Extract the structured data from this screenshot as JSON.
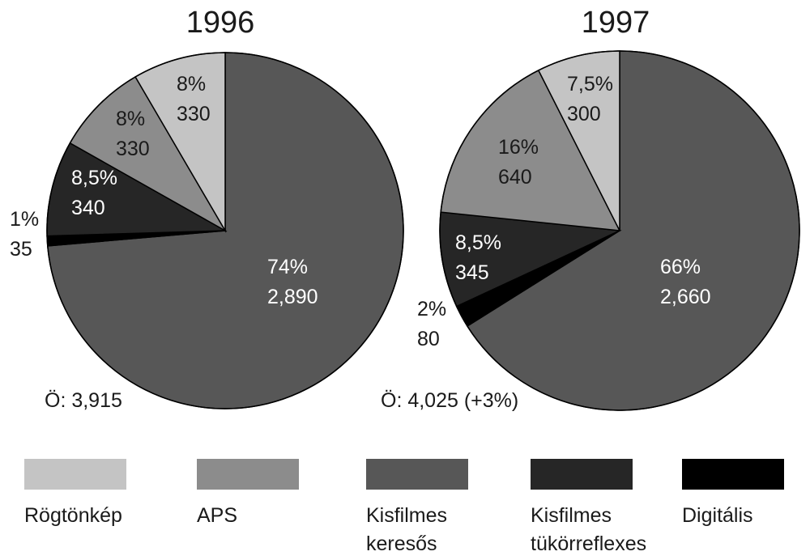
{
  "chart_data": [
    {
      "type": "pie",
      "title": "1996",
      "total_label": "Ö: 3,915",
      "slices": [
        {
          "category": "Kisfilmes keresős",
          "percent_label": "74%",
          "value_label": "2,890",
          "value": 2890
        },
        {
          "category": "Digitális",
          "percent_label": "1%",
          "value_label": "35",
          "value": 35
        },
        {
          "category": "Kisfilmes tükörreflexes",
          "percent_label": "8,5%",
          "value_label": "340",
          "value": 340
        },
        {
          "category": "APS",
          "percent_label": "8%",
          "value_label": "330",
          "value": 330
        },
        {
          "category": "Rögtönkép",
          "percent_label": "8%",
          "value_label": "330",
          "value": 330
        }
      ]
    },
    {
      "type": "pie",
      "title": "1997",
      "total_label": "Ö: 4,025 (+3%)",
      "slices": [
        {
          "category": "Kisfilmes keresős",
          "percent_label": "66%",
          "value_label": "2,660",
          "value": 2660
        },
        {
          "category": "Digitális",
          "percent_label": "2%",
          "value_label": "80",
          "value": 80
        },
        {
          "category": "Kisfilmes tükörreflexes",
          "percent_label": "8,5%",
          "value_label": "345",
          "value": 345
        },
        {
          "category": "APS",
          "percent_label": "16%",
          "value_label": "640",
          "value": 640
        },
        {
          "category": "Rögtönkép",
          "percent_label": "7,5%",
          "value_label": "300",
          "value": 300
        }
      ]
    }
  ],
  "legend": [
    {
      "category": "Rögtönkép",
      "lines": [
        "Rögtönkép"
      ],
      "color": "#c4c4c4"
    },
    {
      "category": "APS",
      "lines": [
        "APS"
      ],
      "color": "#8c8c8c"
    },
    {
      "category": "Kisfilmes keresős",
      "lines": [
        "Kisfilmes",
        "keresős"
      ],
      "color": "#575757"
    },
    {
      "category": "Kisfilmes tükörreflexes",
      "lines": [
        "Kisfilmes",
        "tükörreflexes"
      ],
      "color": "#262626"
    },
    {
      "category": "Digitális",
      "lines": [
        "Digitális"
      ],
      "color": "#000000"
    }
  ],
  "slice_text_colors": {
    "Rögtönkép": "#1a1a1a",
    "APS": "#1a1a1a",
    "Kisfilmes keresős": "#ffffff",
    "Kisfilmes tükörreflexes": "#ffffff",
    "Digitális": "#1a1a1a"
  }
}
